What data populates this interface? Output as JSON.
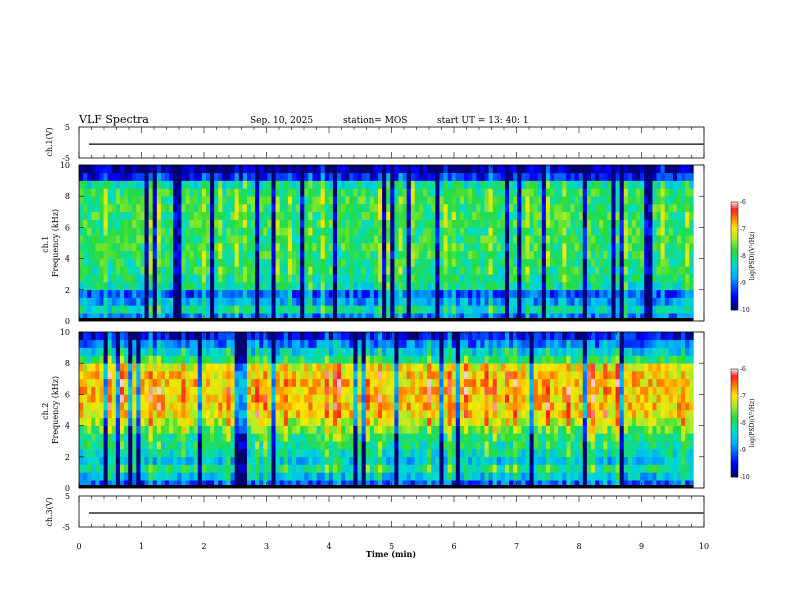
{
  "header": {
    "title": "VLF Spectra",
    "date": "Sep. 10, 2025",
    "station": "station= MOS",
    "start_time": "start  UT  =   13: 40: 1"
  },
  "chart_data": [
    {
      "type": "line",
      "panel": "ch1-waveform",
      "ylabel": "ch.1(V)",
      "yticks": [
        "5",
        "-5"
      ],
      "ylim": [
        -5,
        5
      ],
      "xlim": [
        0,
        10
      ],
      "series": [
        {
          "values": [
            -0.5,
            -0.5,
            -0.5,
            -0.5,
            -0.5,
            -0.5,
            -0.5,
            -0.5,
            -0.5,
            -0.5,
            -0.5
          ]
        }
      ]
    },
    {
      "type": "heatmap",
      "panel": "ch1-spectrogram",
      "ylabel": "ch.1\nFrequency (kHz)",
      "xlim": [
        0,
        10
      ],
      "ylim": [
        0,
        10
      ],
      "yticks": [
        "0",
        "2",
        "4",
        "6",
        "8",
        "10"
      ],
      "data_end_min": 9.83,
      "profile": {
        "freq_khz": [
          0.25,
          0.75,
          1.25,
          1.75,
          2.25,
          2.75,
          3.25,
          3.75,
          4.25,
          4.75,
          5.25,
          5.75,
          6.25,
          6.75,
          7.25,
          7.75,
          8.25,
          8.75,
          9.25,
          9.75
        ],
        "log_psd": [
          -9.0,
          -8.3,
          -8.8,
          -9.2,
          -8.2,
          -8.1,
          -8.0,
          -8.0,
          -7.9,
          -7.9,
          -7.9,
          -7.9,
          -7.9,
          -7.9,
          -7.9,
          -7.9,
          -7.95,
          -8.2,
          -9.5,
          -9.9
        ]
      },
      "colorbar": {
        "label": "log(PSD)(V²/Hz)",
        "min": -10,
        "max": -6,
        "ticks": [
          "-6",
          "-7",
          "-8",
          "-9",
          "-10"
        ]
      }
    },
    {
      "type": "heatmap",
      "panel": "ch2-spectrogram",
      "ylabel": "ch.2\nFrequency (kHz)",
      "xlim": [
        0,
        10
      ],
      "ylim": [
        0,
        10
      ],
      "yticks": [
        "0",
        "2",
        "4",
        "6",
        "8",
        "10"
      ],
      "data_end_min": 9.83,
      "profile": {
        "freq_khz": [
          0.25,
          0.75,
          1.25,
          1.75,
          2.25,
          2.75,
          3.25,
          3.75,
          4.25,
          4.75,
          5.25,
          5.75,
          6.25,
          6.75,
          7.25,
          7.75,
          8.25,
          8.75,
          9.25,
          9.75
        ],
        "log_psd": [
          -9.2,
          -8.6,
          -8.1,
          -8.6,
          -8.3,
          -8.1,
          -8.0,
          -7.7,
          -7.3,
          -7.0,
          -6.9,
          -6.9,
          -6.9,
          -6.9,
          -6.95,
          -7.1,
          -8.0,
          -8.5,
          -9.0,
          -9.6
        ]
      },
      "colorbar": {
        "label": "log(PSD)(V²/Hz)",
        "min": -10,
        "max": -6,
        "ticks": [
          "-6",
          "-7",
          "-8",
          "-9",
          "-10"
        ]
      }
    },
    {
      "type": "line",
      "panel": "ch3-waveform",
      "ylabel": "ch.3(V)",
      "yticks": [
        "5",
        "-5"
      ],
      "ylim": [
        -5,
        5
      ],
      "xlim": [
        0,
        10
      ],
      "xlabel": "Time  (min)",
      "xticks": [
        "0",
        "1",
        "2",
        "3",
        "4",
        "5",
        "6",
        "7",
        "8",
        "9",
        "10"
      ],
      "series": [
        {
          "values": [
            -0.5,
            -0.5,
            -0.5,
            -0.5,
            -0.5,
            -0.5,
            -0.5,
            -0.5,
            -0.5,
            -0.5,
            -0.5
          ]
        }
      ]
    }
  ]
}
